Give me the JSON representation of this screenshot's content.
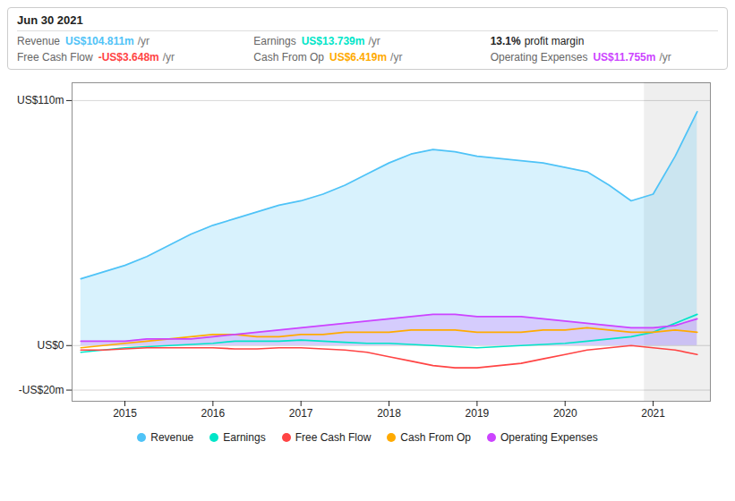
{
  "chart_data": {
    "type": "line",
    "x": [
      2014.5,
      2014.75,
      2015.0,
      2015.25,
      2015.5,
      2015.75,
      2016.0,
      2016.25,
      2016.5,
      2016.75,
      2017.0,
      2017.25,
      2017.5,
      2017.75,
      2018.0,
      2018.25,
      2018.5,
      2018.75,
      2019.0,
      2019.25,
      2019.5,
      2019.75,
      2020.0,
      2020.25,
      2020.5,
      2020.75,
      2021.0,
      2021.25,
      2021.5
    ],
    "series": [
      {
        "name": "Revenue",
        "type": "area",
        "color": "#4fc3f7",
        "values": [
          30,
          33,
          36,
          40,
          45,
          50,
          54,
          57,
          60,
          63,
          65,
          68,
          72,
          77,
          82,
          86,
          88,
          87,
          85,
          84,
          83,
          82,
          80,
          78,
          72,
          65,
          68,
          85,
          105
        ]
      },
      {
        "name": "Earnings",
        "type": "line",
        "color": "#00e5c8",
        "values": [
          -3,
          -2,
          -1,
          -0.5,
          0,
          0.5,
          1,
          2,
          2,
          2,
          2.5,
          2,
          1.5,
          1,
          1,
          0.5,
          0,
          -0.5,
          -1,
          -0.5,
          0,
          0.5,
          1,
          2,
          3,
          4,
          6,
          10,
          14
        ]
      },
      {
        "name": "Free Cash Flow",
        "type": "line",
        "color": "#ff4444",
        "values": [
          -2,
          -2,
          -1.5,
          -1,
          -1,
          -1,
          -1,
          -1.5,
          -1.5,
          -1,
          -1,
          -1.5,
          -2,
          -3,
          -5,
          -7,
          -9,
          -10,
          -10,
          -9,
          -8,
          -6,
          -4,
          -2,
          -1,
          0,
          -1,
          -2,
          -4
        ]
      },
      {
        "name": "Cash From Op",
        "type": "line",
        "color": "#ffaa00",
        "values": [
          -1,
          0,
          1,
          2,
          3,
          4,
          5,
          5,
          4,
          4,
          5,
          5,
          6,
          6,
          6,
          7,
          7,
          7,
          6,
          6,
          6,
          7,
          7,
          8,
          7,
          6,
          6,
          7,
          6
        ]
      },
      {
        "name": "Operating Expenses",
        "type": "area",
        "color": "#cc44ff",
        "values": [
          2,
          2,
          2,
          3,
          3,
          3,
          4,
          5,
          6,
          7,
          8,
          9,
          10,
          11,
          12,
          13,
          14,
          14,
          13,
          13,
          13,
          12,
          11,
          10,
          9,
          8,
          8,
          9,
          12
        ]
      }
    ],
    "xlim": [
      2014.4,
      2021.65
    ],
    "xticks": [
      2015,
      2016,
      2017,
      2018,
      2019,
      2020,
      2021
    ],
    "ylim": [
      -25,
      118
    ],
    "yticks": [
      {
        "value": 110,
        "label": "US$110m"
      },
      {
        "value": 0,
        "label": "US$0"
      },
      {
        "value": -20,
        "label": "-US$20m"
      }
    ],
    "grid": true,
    "legend": "bottom",
    "highlight_x": [
      2020.9,
      2021.65
    ],
    "infobox": {
      "date": "Jun 30 2021",
      "rows": [
        {
          "label": "Revenue",
          "value": "US$104.811m",
          "unit": "/yr",
          "color": "#4fc3f7"
        },
        {
          "label": "Earnings",
          "value": "US$13.739m",
          "unit": "/yr",
          "color": "#00e5c8"
        },
        {
          "value": "13.1%",
          "text": "profit margin"
        },
        {
          "label": "Free Cash Flow",
          "value": "-US$3.648m",
          "unit": "/yr",
          "color": "#ff4444"
        },
        {
          "label": "Cash From Op",
          "value": "US$6.419m",
          "unit": "/yr",
          "color": "#ffaa00"
        },
        {
          "label": "Operating Expenses",
          "value": "US$11.755m",
          "unit": "/yr",
          "color": "#cc44ff"
        }
      ]
    }
  }
}
